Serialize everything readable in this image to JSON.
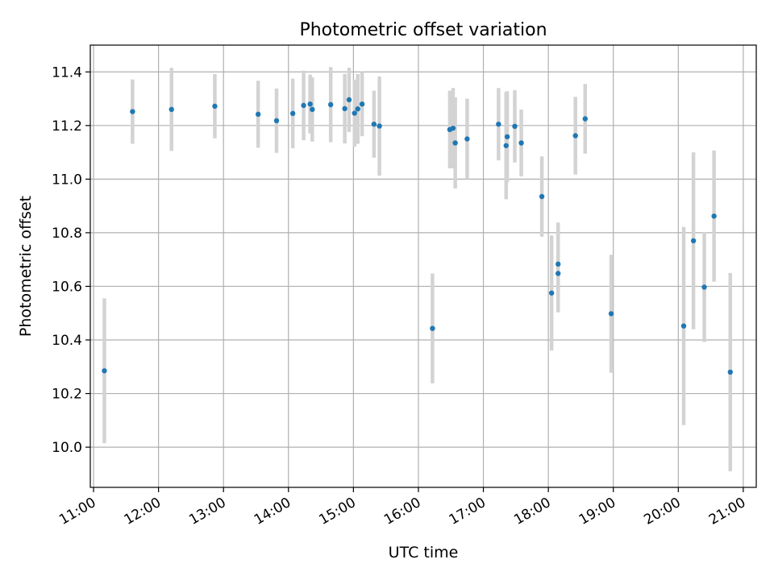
{
  "chart_data": {
    "type": "scatter",
    "title": "Photometric offset variation",
    "xlabel": "UTC time",
    "ylabel": "Photometric offset",
    "x_axis_kind": "time",
    "xlim": [
      "10:57",
      "21:12"
    ],
    "ylim": [
      9.85,
      11.5
    ],
    "x_ticks": [
      "11:00",
      "12:00",
      "13:00",
      "14:00",
      "15:00",
      "16:00",
      "17:00",
      "18:00",
      "19:00",
      "20:00",
      "21:00"
    ],
    "y_ticks": [
      10.0,
      10.2,
      10.4,
      10.6,
      10.8,
      11.0,
      11.2,
      11.4
    ],
    "y_tick_labels": [
      "10.0",
      "10.2",
      "10.4",
      "10.6",
      "10.8",
      "11.0",
      "11.2",
      "11.4"
    ],
    "grid": true,
    "point_color": "#1f77b4",
    "errorbar_color": "#d3d3d3",
    "points": [
      {
        "x": "11:10",
        "y": 10.285,
        "yerr": 0.27
      },
      {
        "x": "11:36",
        "y": 11.252,
        "yerr": 0.12
      },
      {
        "x": "12:12",
        "y": 11.26,
        "yerr": 0.155
      },
      {
        "x": "12:52",
        "y": 11.272,
        "yerr": 0.12
      },
      {
        "x": "13:32",
        "y": 11.242,
        "yerr": 0.125
      },
      {
        "x": "13:49",
        "y": 11.218,
        "yerr": 0.12
      },
      {
        "x": "14:04",
        "y": 11.245,
        "yerr": 0.13
      },
      {
        "x": "14:14",
        "y": 11.275,
        "yerr": 0.13
      },
      {
        "x": "14:20",
        "y": 11.28,
        "yerr": 0.11
      },
      {
        "x": "14:22",
        "y": 11.26,
        "yerr": 0.12
      },
      {
        "x": "14:39",
        "y": 11.278,
        "yerr": 0.14
      },
      {
        "x": "14:52",
        "y": 11.263,
        "yerr": 0.13
      },
      {
        "x": "14:56",
        "y": 11.296,
        "yerr": 0.12
      },
      {
        "x": "15:01",
        "y": 11.246,
        "yerr": 0.125
      },
      {
        "x": "15:04",
        "y": 11.262,
        "yerr": 0.13
      },
      {
        "x": "15:08",
        "y": 11.28,
        "yerr": 0.12
      },
      {
        "x": "15:19",
        "y": 11.205,
        "yerr": 0.125
      },
      {
        "x": "15:24",
        "y": 11.198,
        "yerr": 0.185
      },
      {
        "x": "16:13",
        "y": 10.443,
        "yerr": 0.205
      },
      {
        "x": "16:29",
        "y": 11.185,
        "yerr": 0.145
      },
      {
        "x": "16:32",
        "y": 11.19,
        "yerr": 0.15
      },
      {
        "x": "16:34",
        "y": 11.135,
        "yerr": 0.17
      },
      {
        "x": "16:45",
        "y": 11.15,
        "yerr": 0.15
      },
      {
        "x": "17:14",
        "y": 11.205,
        "yerr": 0.135
      },
      {
        "x": "17:21",
        "y": 11.125,
        "yerr": 0.2
      },
      {
        "x": "17:22",
        "y": 11.158,
        "yerr": 0.17
      },
      {
        "x": "17:29",
        "y": 11.197,
        "yerr": 0.135
      },
      {
        "x": "17:35",
        "y": 11.135,
        "yerr": 0.125
      },
      {
        "x": "17:54",
        "y": 10.935,
        "yerr": 0.15
      },
      {
        "x": "18:03",
        "y": 10.575,
        "yerr": 0.215
      },
      {
        "x": "18:09",
        "y": 10.683,
        "yerr": 0.155
      },
      {
        "x": "18:09",
        "y": 10.648,
        "yerr": 0.145
      },
      {
        "x": "18:25",
        "y": 11.162,
        "yerr": 0.145
      },
      {
        "x": "18:34",
        "y": 11.225,
        "yerr": 0.13
      },
      {
        "x": "18:58",
        "y": 10.498,
        "yerr": 0.22
      },
      {
        "x": "20:05",
        "y": 10.452,
        "yerr": 0.37
      },
      {
        "x": "20:14",
        "y": 10.77,
        "yerr": 0.33
      },
      {
        "x": "20:24",
        "y": 10.597,
        "yerr": 0.205
      },
      {
        "x": "20:33",
        "y": 10.862,
        "yerr": 0.245
      },
      {
        "x": "20:48",
        "y": 10.28,
        "yerr": 0.37
      }
    ]
  }
}
